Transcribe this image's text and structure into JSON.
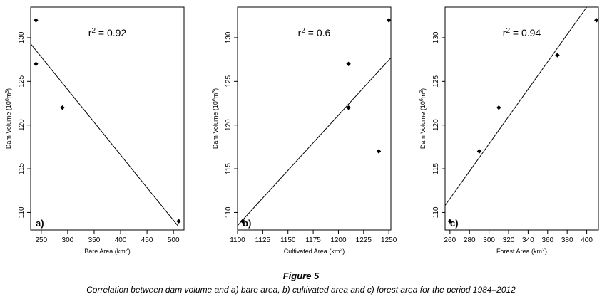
{
  "caption": {
    "title": "Figure 5",
    "text": "Correlation between dam volume and a) bare area, b) cultivated area and c) forest area for the period 1984–2012"
  },
  "chart_data": [
    {
      "type": "scatter",
      "panel_label": "a)",
      "annotation": "r² = 0.92",
      "xlabel": "Bare Area (km²)",
      "ylabel": "Dam Volume (10⁶m³)",
      "xlim": [
        230,
        520
      ],
      "ylim": [
        108,
        133.5
      ],
      "xticks": [
        250,
        300,
        350,
        400,
        450,
        500
      ],
      "yticks": [
        110,
        115,
        120,
        125,
        130
      ],
      "points": [
        [
          240,
          132
        ],
        [
          240,
          127
        ],
        [
          290,
          122
        ],
        [
          510,
          109
        ]
      ],
      "fit_line": [
        [
          230,
          129.3
        ],
        [
          508,
          108.5
        ]
      ],
      "grid": false,
      "legend": "none"
    },
    {
      "type": "scatter",
      "panel_label": "b)",
      "annotation": "r² = 0.6",
      "xlabel": "Cultivated Area (km²)",
      "ylabel": "Dam Volume (10⁶m³)",
      "xlim": [
        1100,
        1252
      ],
      "ylim": [
        108,
        133.5
      ],
      "xticks": [
        1100,
        1125,
        1150,
        1175,
        1200,
        1225,
        1250
      ],
      "yticks": [
        110,
        115,
        120,
        125,
        130
      ],
      "points": [
        [
          1105,
          109
        ],
        [
          1210,
          127
        ],
        [
          1210,
          122
        ],
        [
          1240,
          117
        ],
        [
          1250,
          132
        ]
      ],
      "fit_line": [
        [
          1100,
          108.5
        ],
        [
          1252,
          127.7
        ]
      ],
      "grid": false,
      "legend": "none"
    },
    {
      "type": "scatter",
      "panel_label": "c)",
      "annotation": "r² = 0.94",
      "xlabel": "Forest Area (km²)",
      "ylabel": "Dam Volume (10⁶m³)",
      "xlim": [
        255,
        412
      ],
      "ylim": [
        108,
        133.5
      ],
      "xticks": [
        260,
        280,
        300,
        320,
        340,
        360,
        380,
        400
      ],
      "yticks": [
        110,
        115,
        120,
        125,
        130
      ],
      "points": [
        [
          260,
          109
        ],
        [
          290,
          117
        ],
        [
          310,
          122
        ],
        [
          370,
          128
        ],
        [
          410,
          132
        ]
      ],
      "fit_line": [
        [
          255,
          110.8
        ],
        [
          400,
          133.5
        ]
      ],
      "grid": false,
      "legend": "none"
    }
  ]
}
